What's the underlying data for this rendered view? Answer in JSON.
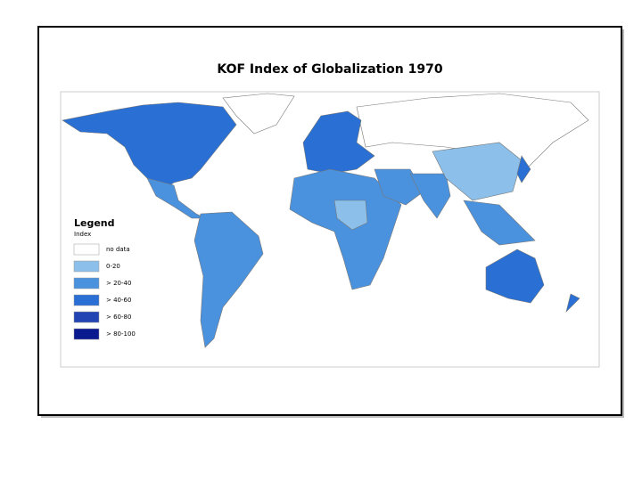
{
  "title": "KOF Index of Globalization 1970",
  "legend": {
    "title": "Legend",
    "subtitle": "Index",
    "items": [
      {
        "label": "no data",
        "color": "#ffffff"
      },
      {
        "label": "0-20",
        "color": "#8cc0eb"
      },
      {
        "label": "> 20-40",
        "color": "#4a92de"
      },
      {
        "label": "> 40-60",
        "color": "#2a6fd4"
      },
      {
        "label": "> 60-80",
        "color": "#2345b3"
      },
      {
        "label": "> 80-100",
        "color": "#0a1a8f"
      }
    ]
  }
}
